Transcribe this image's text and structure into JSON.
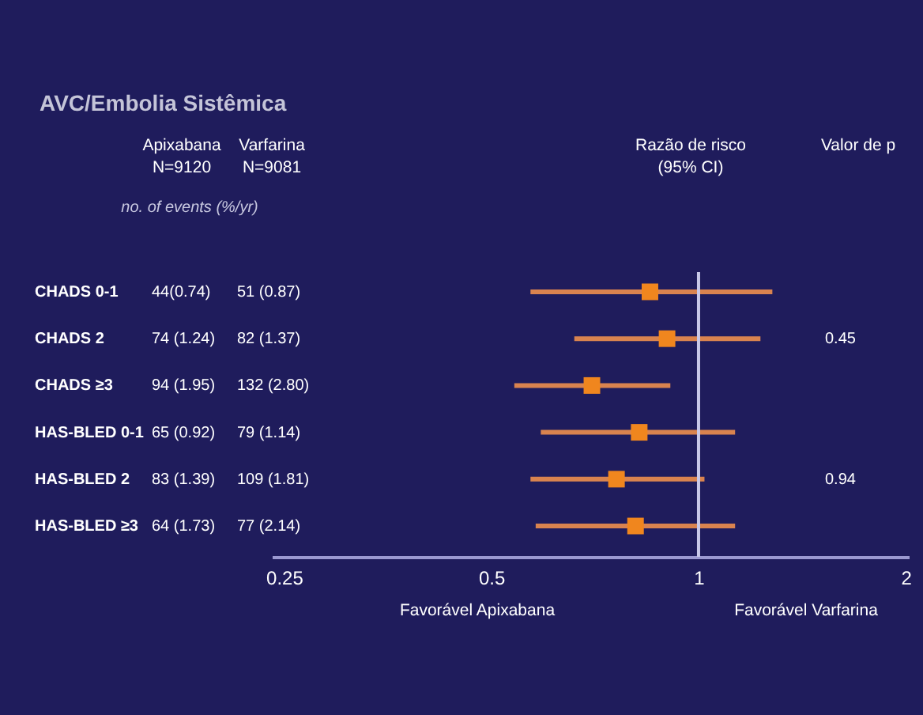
{
  "chart_data": {
    "type": "scatter",
    "title": "AVC/Embolia Sistêmica",
    "orientation": "horizontal",
    "log": "x",
    "marker": "square",
    "categories": [
      "CHADS 0-1",
      "CHADS 2",
      "CHADS ≥3",
      "HAS-BLED 0-1",
      "HAS-BLED 2",
      "HAS-BLED ≥3"
    ],
    "series": [
      {
        "color": "#f0861e",
        "values": [
          0.85,
          0.9,
          0.7,
          0.82,
          0.76,
          0.81
        ],
        "errors": [
          [
            0.57,
            1.28
          ],
          [
            0.66,
            1.23
          ],
          [
            0.54,
            0.91
          ],
          [
            0.59,
            1.13
          ],
          [
            0.57,
            1.02
          ],
          [
            0.58,
            1.13
          ]
        ]
      }
    ],
    "xlim": [
      0.24,
      2.02
    ],
    "xticks": [
      0.25,
      0.5,
      1,
      2
    ],
    "ref_lines": [
      {
        "axis": "x",
        "value": 1,
        "color": "#c8c8e8"
      }
    ],
    "annotations": [
      "Apixabana",
      "N=9120",
      "Varfarina",
      "N=9081",
      "no. of events (%/yr)",
      "Razão de risco",
      "(95% CI)",
      "Valor de p",
      "Favorável Apixabana",
      "Favorável Varfarina",
      "44(0.74)",
      "51 (0.87)",
      "74 (1.24)",
      "82 (1.37)",
      "0.45",
      "94 (1.95)",
      "132 (2.80)",
      "65 (0.92)",
      "79 (1.14)",
      "83 (1.39)",
      "109 (1.81)",
      "0.94",
      "64 (1.73)",
      "77 (2.14)"
    ]
  }
}
